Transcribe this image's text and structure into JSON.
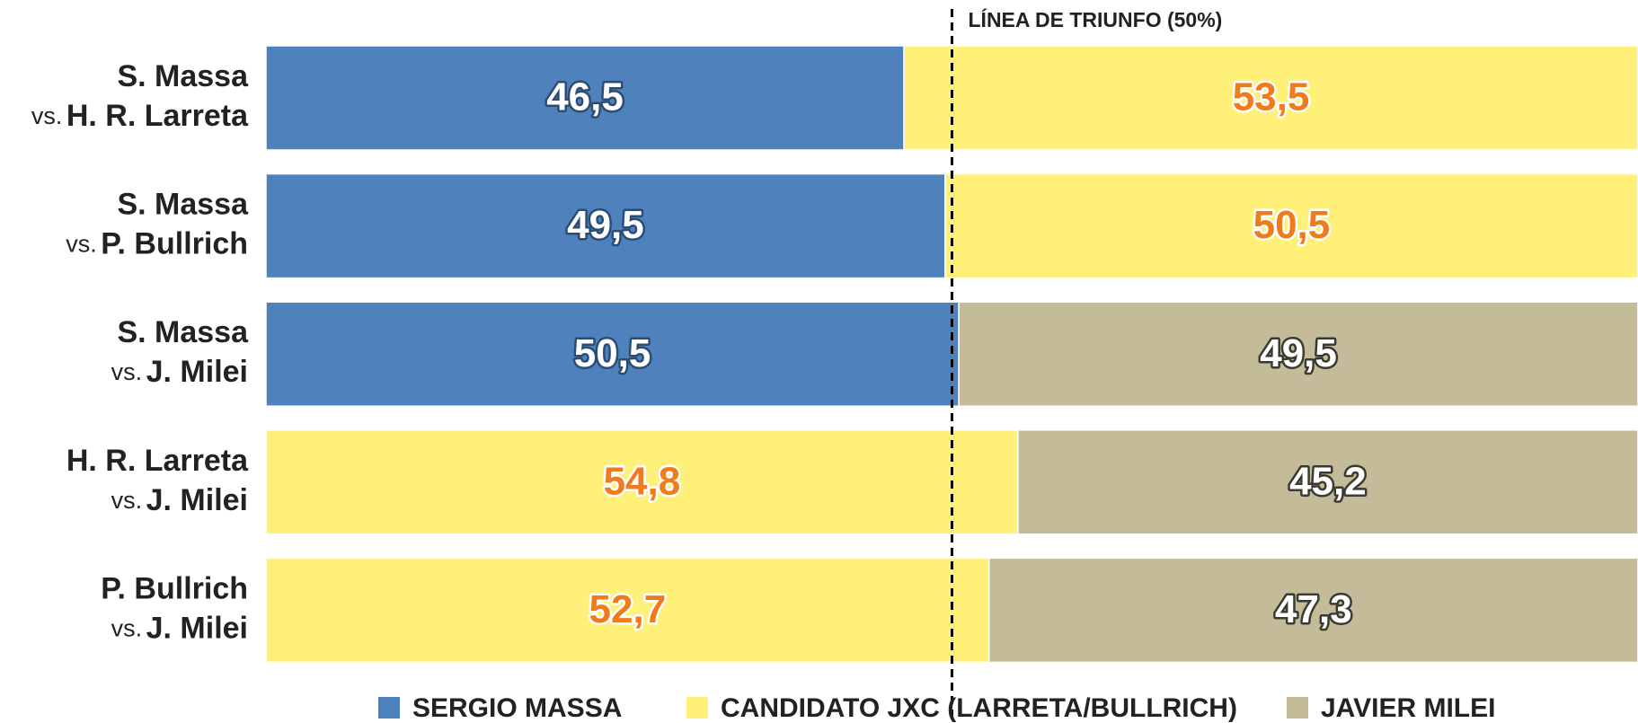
{
  "chart_data": {
    "type": "stacked_bar_horizontal",
    "categories": [
      {
        "top": "S. Massa",
        "prefix": "vs.",
        "bottom": "H. R. Larreta"
      },
      {
        "top": "S. Massa",
        "prefix": "vs.",
        "bottom": "P. Bullrich"
      },
      {
        "top": "S. Massa",
        "prefix": "vs.",
        "bottom": "J. Milei"
      },
      {
        "top": "H. R. Larreta",
        "prefix": "vs.",
        "bottom": "J. Milei"
      },
      {
        "top": "P. Bullrich",
        "prefix": "vs.",
        "bottom": "J. Milei"
      }
    ],
    "series": [
      {
        "name": "SERGIO MASSA",
        "color": "#4f81bd",
        "label_color": "#ffffff",
        "label_outline": "#2b4c74",
        "values": [
          46.5,
          49.5,
          50.5,
          null,
          null
        ],
        "value_labels": [
          "46,5",
          "49,5",
          "50,5",
          null,
          null
        ]
      },
      {
        "name": "CANDIDATO JXC (LARRETA/BULLRICH)",
        "color": "#fff07a",
        "label_color": "#f07b1c",
        "label_outline": "#ffffff",
        "values": [
          53.5,
          50.5,
          null,
          54.8,
          52.7
        ],
        "value_labels": [
          "53,5",
          "50,5",
          null,
          "54,8",
          "52,7"
        ]
      },
      {
        "name": "JAVIER MILEI",
        "color": "#c4bc98",
        "label_color": "#ffffff",
        "label_outline": "#3a3a30",
        "values": [
          null,
          null,
          49.5,
          45.2,
          47.3
        ],
        "value_labels": [
          null,
          null,
          "49,5",
          "45,2",
          "47,3"
        ]
      }
    ],
    "xlim": [
      0,
      100
    ],
    "reference_line": {
      "value": 50,
      "label": "LÍNEA DE TRIUNFO (50%)"
    }
  }
}
